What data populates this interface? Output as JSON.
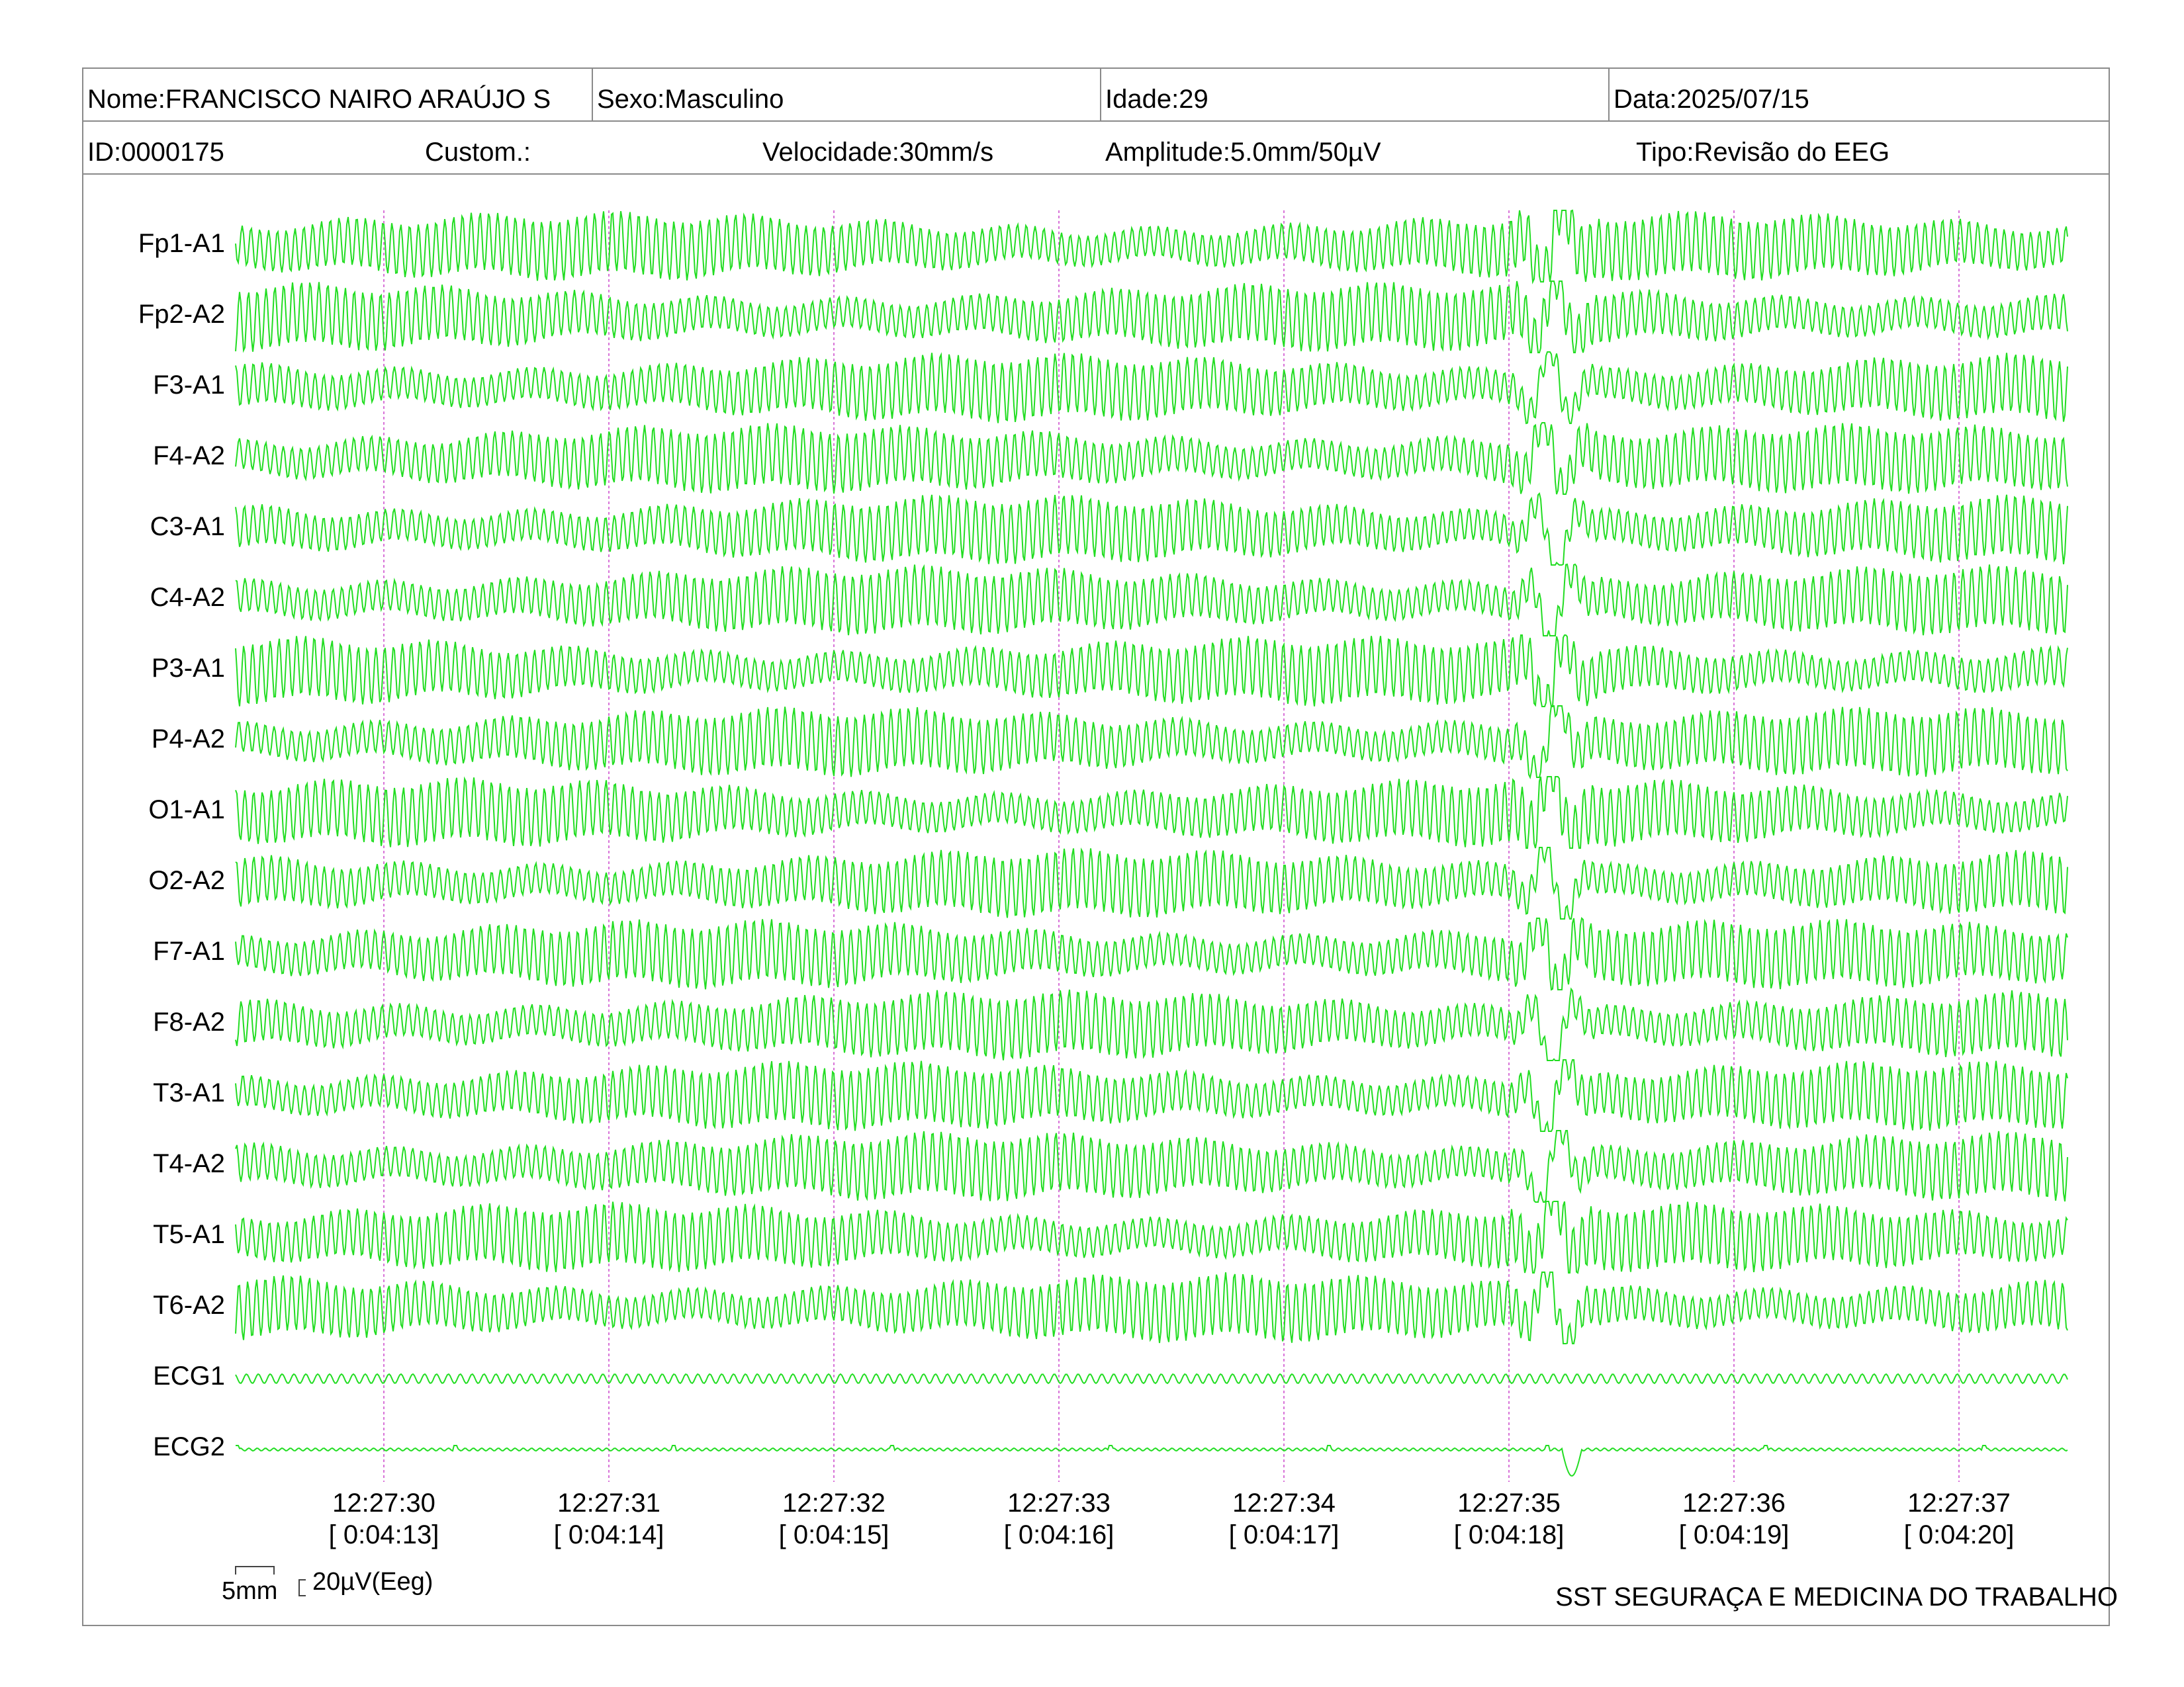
{
  "header": {
    "row1": {
      "nome": "Nome:FRANCISCO NAIRO ARAÚJO S",
      "sexo": "Sexo:Masculino",
      "idade": "Idade:29",
      "data": "Data:2025/07/15"
    },
    "row2": {
      "id": "ID:0000175",
      "custom": "Custom.:",
      "velocidade": "Velocidade:30mm/s",
      "amplitude": "Amplitude:5.0mm/50µV",
      "tipo": "Tipo:Revisão do EEG"
    }
  },
  "chart_data": {
    "type": "line",
    "trace_color": "#22dd22",
    "marker_color": "#cc44cc",
    "channels": [
      "Fp1-A1",
      "Fp2-A2",
      "F3-A1",
      "F4-A2",
      "C3-A1",
      "C4-A2",
      "P3-A1",
      "P4-A2",
      "O1-A1",
      "O2-A2",
      "F7-A1",
      "F8-A2",
      "T3-A1",
      "T4-A2",
      "T5-A1",
      "T6-A2",
      "ECG1",
      "ECG2"
    ],
    "time_ticks": [
      {
        "clock": "12:27:30",
        "elapsed": "[ 0:04:13]"
      },
      {
        "clock": "12:27:31",
        "elapsed": "[ 0:04:14]"
      },
      {
        "clock": "12:27:32",
        "elapsed": "[ 0:04:15]"
      },
      {
        "clock": "12:27:33",
        "elapsed": "[ 0:04:16]"
      },
      {
        "clock": "12:27:34",
        "elapsed": "[ 0:04:17]"
      },
      {
        "clock": "12:27:35",
        "elapsed": "[ 0:04:18]"
      },
      {
        "clock": "12:27:36",
        "elapsed": "[ 0:04:19]"
      },
      {
        "clock": "12:27:37",
        "elapsed": "[ 0:04:20]"
      }
    ],
    "scale": {
      "length": "5mm",
      "amplitude": "20µV(Eeg)"
    }
  },
  "footer": {
    "org": "SST SEGURAÇA E MEDICINA DO TRABALHO"
  }
}
